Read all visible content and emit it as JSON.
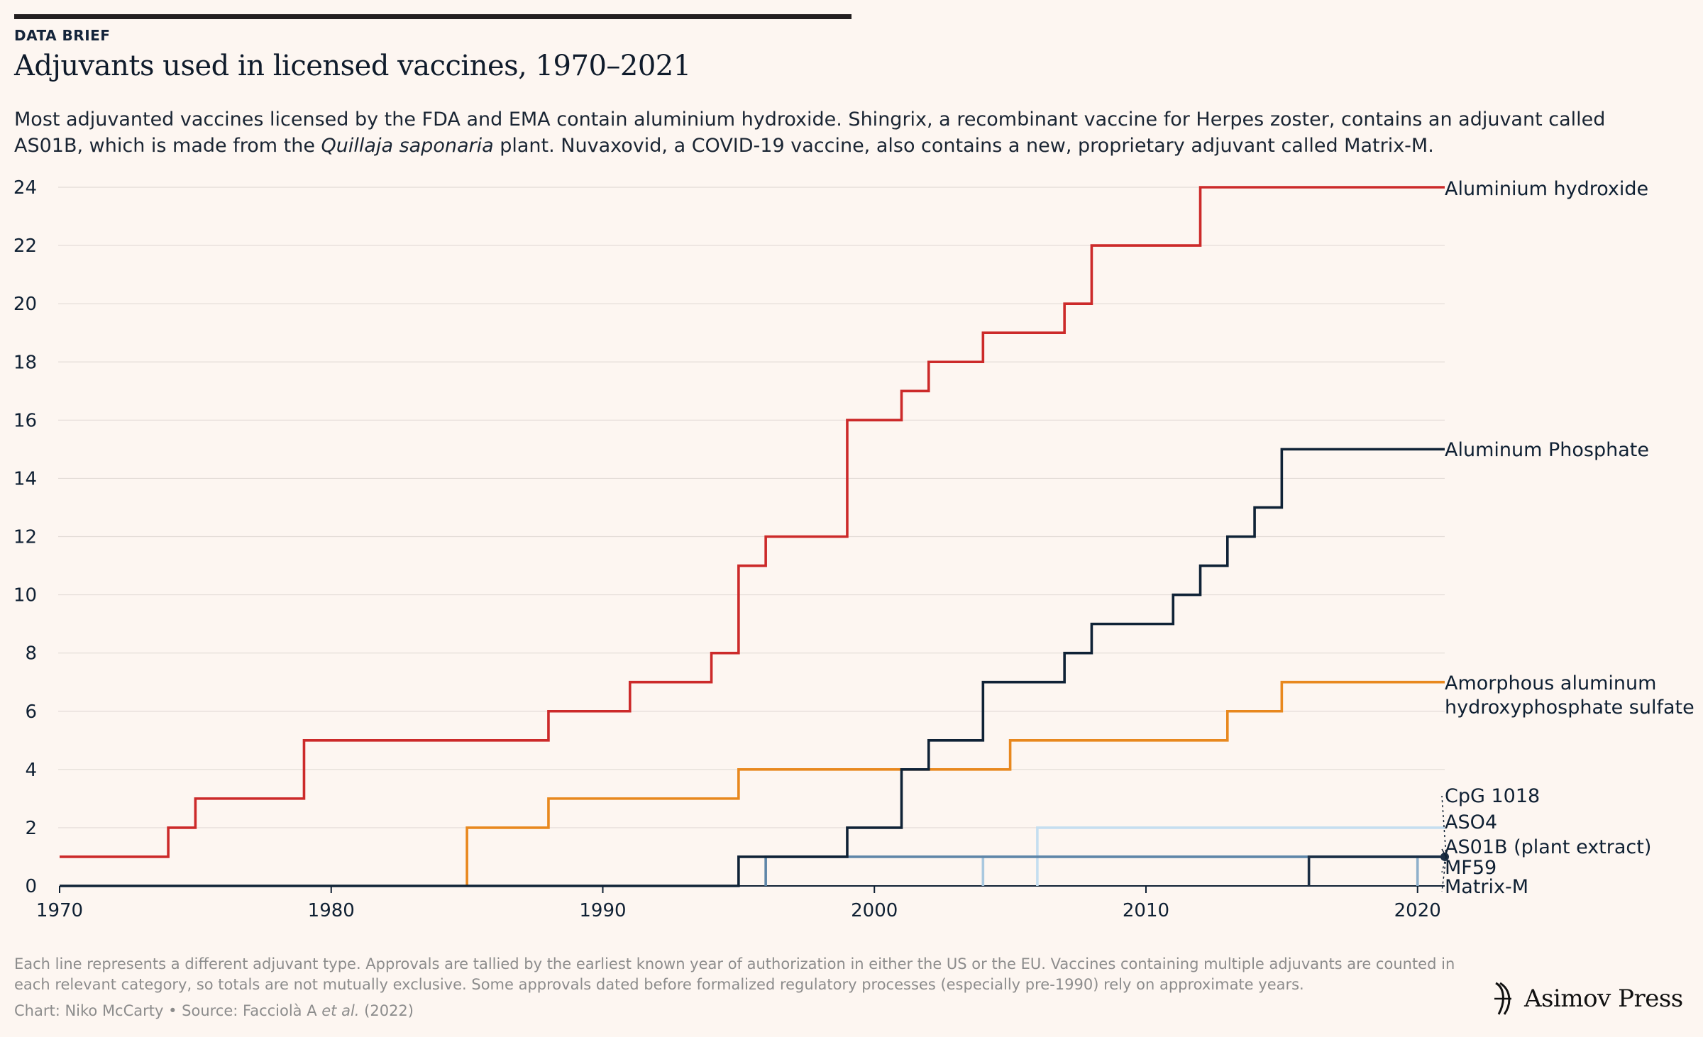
{
  "header": {
    "kicker": "DATA BRIEF",
    "title": "Adjuvants used in licensed vaccines, 1970–2021",
    "subtitle_a": "Most adjuvanted vaccines licensed by the FDA and EMA contain aluminium hydroxide. Shingrix, a recombinant vaccine for Herpes zoster, contains an adjuvant called AS01B, which is made from the ",
    "subtitle_em": "Quillaja saponaria",
    "subtitle_b": " plant. Nuvaxovid, a COVID-19 vaccine, also contains a new, proprietary adjuvant called Matrix-M."
  },
  "footer": {
    "note": "Each line represents a different adjuvant type. Approvals are tallied by the earliest known year of authorization in either the US or the EU. Vaccines containing multiple adjuvants are counted in each relevant category, so totals are not mutually exclusive. Some approvals dated before formalized regulatory processes (especially pre-1990) rely on approximate years.",
    "credit_a": "Chart: Niko McCarty • Source: Facciolà A ",
    "credit_em": "et al.",
    "credit_b": " (2022)",
    "brand": "Asimov Press"
  },
  "chart_data": {
    "type": "line",
    "step": true,
    "title": "",
    "xlabel": "",
    "ylabel": "",
    "xlim": [
      1970,
      2021
    ],
    "ylim": [
      0,
      24
    ],
    "xticks": [
      1970,
      1980,
      1990,
      2000,
      2010,
      2020
    ],
    "yticks": [
      0,
      2,
      4,
      6,
      8,
      10,
      12,
      14,
      16,
      18,
      20,
      22,
      24
    ],
    "grid": "horizontal",
    "series": [
      {
        "name": "Aluminium hydroxide",
        "color": "#cc2a2a",
        "points": [
          [
            1970,
            1
          ],
          [
            1974,
            2
          ],
          [
            1975,
            3
          ],
          [
            1979,
            5
          ],
          [
            1988,
            6
          ],
          [
            1991,
            7
          ],
          [
            1994,
            8
          ],
          [
            1995,
            11
          ],
          [
            1996,
            12
          ],
          [
            1999,
            16
          ],
          [
            2001,
            17
          ],
          [
            2002,
            18
          ],
          [
            2004,
            19
          ],
          [
            2007,
            20
          ],
          [
            2008,
            22
          ],
          [
            2012,
            24
          ],
          [
            2021,
            24
          ]
        ]
      },
      {
        "name": "Aluminum Phosphate",
        "color": "#0f2236",
        "points": [
          [
            1970,
            0
          ],
          [
            1995,
            1
          ],
          [
            1999,
            2
          ],
          [
            2001,
            4
          ],
          [
            2002,
            5
          ],
          [
            2004,
            7
          ],
          [
            2007,
            8
          ],
          [
            2008,
            9
          ],
          [
            2011,
            10
          ],
          [
            2012,
            11
          ],
          [
            2013,
            12
          ],
          [
            2014,
            13
          ],
          [
            2015,
            15
          ],
          [
            2021,
            15
          ]
        ]
      },
      {
        "name": "Amorphous aluminum hydroxyphosphate sulfate",
        "color": "#e8881e",
        "points": [
          [
            1985,
            0
          ],
          [
            1985,
            2
          ],
          [
            1988,
            3
          ],
          [
            1995,
            4
          ],
          [
            2005,
            5
          ],
          [
            2013,
            6
          ],
          [
            2015,
            7
          ],
          [
            2021,
            7
          ]
        ]
      },
      {
        "name": "CpG 1018",
        "color": "#c5def0",
        "points": [
          [
            2006,
            0
          ],
          [
            2006,
            2
          ],
          [
            2021,
            2
          ]
        ]
      },
      {
        "name": "ASO4",
        "color": "#a9c8df",
        "points": [
          [
            2004,
            0
          ],
          [
            2004,
            1
          ],
          [
            2021,
            1
          ]
        ]
      },
      {
        "name": "AS01B (plant extract)",
        "color": "#1b2e44",
        "points": [
          [
            2016,
            0
          ],
          [
            2016,
            1
          ],
          [
            2021,
            1
          ]
        ]
      },
      {
        "name": "MF59",
        "color": "#5f86a8",
        "points": [
          [
            1996,
            0
          ],
          [
            1996,
            1
          ],
          [
            2021,
            1
          ]
        ]
      },
      {
        "name": "Matrix-M",
        "color": "#8fb0cb",
        "points": [
          [
            2020,
            0
          ],
          [
            2020,
            1
          ],
          [
            2021,
            1
          ]
        ]
      }
    ],
    "labels": {
      "Aluminium hydroxide": [
        "Aluminium hydroxide"
      ],
      "Aluminum Phosphate": [
        "Aluminum Phosphate"
      ],
      "Amorphous aluminum hydroxyphosphate sulfate": [
        "Amorphous aluminum",
        "hydroxyphosphate sulfate"
      ],
      "CpG 1018": [
        "CpG 1018"
      ],
      "ASO4": [
        "ASO4"
      ],
      "AS01B (plant extract)": [
        "AS01B (plant extract)"
      ],
      "MF59": [
        "MF59"
      ],
      "Matrix-M": [
        "Matrix-M"
      ]
    }
  }
}
